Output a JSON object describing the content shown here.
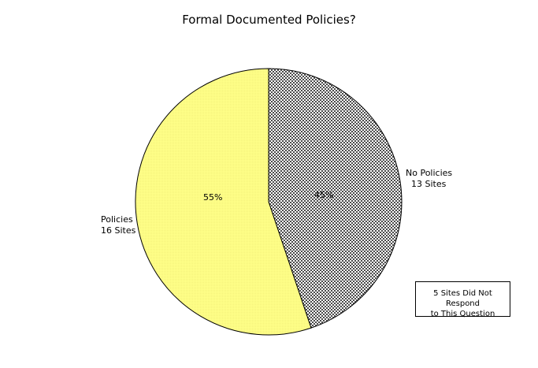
{
  "chart_data": {
    "type": "pie",
    "title": "Formal Documented Policies?",
    "slices": [
      {
        "label": "No Policies",
        "sublabel": "13 Sites",
        "value": 13,
        "percent_label": "45%",
        "color": "#4a4a4a",
        "fill": "hatched"
      },
      {
        "label": "Policies",
        "sublabel": "16 Sites",
        "value": 16,
        "percent_label": "55%",
        "color": "#ffff8c",
        "fill": "solid"
      }
    ],
    "start_angle": "top (12 o'clock)",
    "direction": "clockwise",
    "note": {
      "line1": "5 Sites Did Not Respond",
      "line2": "to This Question"
    }
  }
}
